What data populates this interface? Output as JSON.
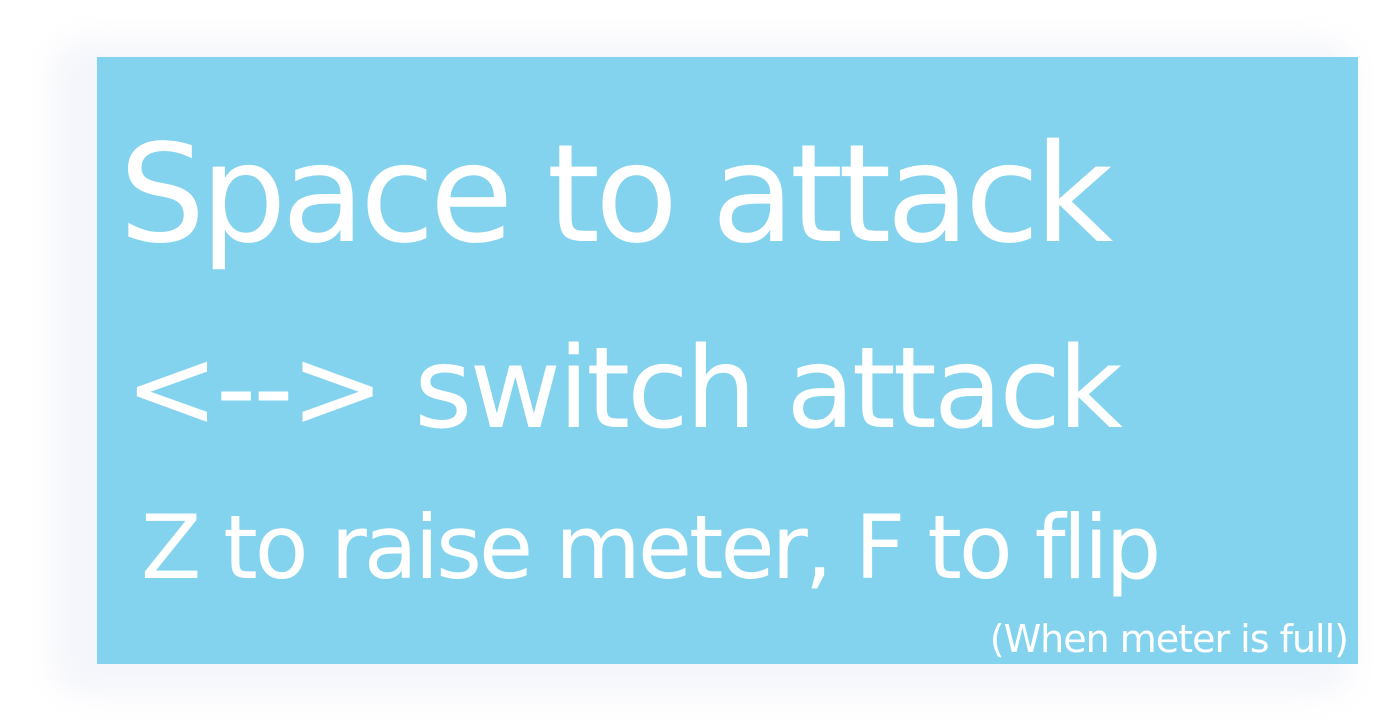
{
  "instructions": {
    "attack": "Space to attack",
    "switch": "<--> switch attack",
    "meter_flip": "Z to raise meter,  F to flip",
    "condition": "(When meter is full)"
  },
  "colors": {
    "panel_background": "#83d3ef",
    "text": "#ffffff"
  }
}
